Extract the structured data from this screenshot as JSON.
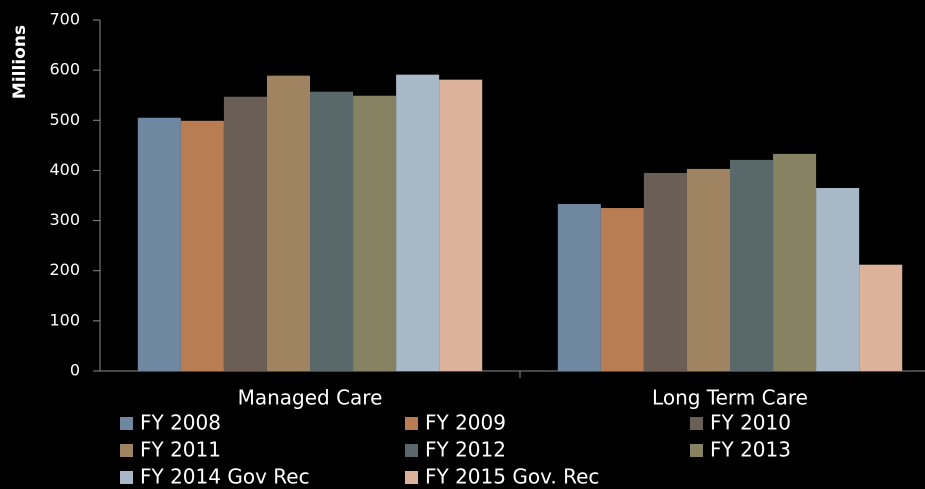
{
  "chart_data": {
    "type": "bar",
    "y_axis_label": "Millions",
    "categories": [
      "Managed Care",
      "Long Term Care"
    ],
    "series": [
      {
        "name": "FY 2008",
        "color": "#6f87a0",
        "values": [
          505,
          333
        ]
      },
      {
        "name": "FY 2009",
        "color": "#b87d52",
        "values": [
          499,
          325
        ]
      },
      {
        "name": "FY 2010",
        "color": "#6b5e55",
        "values": [
          547,
          395
        ]
      },
      {
        "name": "FY 2011",
        "color": "#a08461",
        "values": [
          589,
          403
        ]
      },
      {
        "name": "FY 2012",
        "color": "#58686b",
        "values": [
          557,
          421
        ]
      },
      {
        "name": "FY 2013",
        "color": "#878262",
        "values": [
          549,
          433
        ]
      },
      {
        "name": "FY 2014 Gov Rec",
        "color": "#a8b8c6",
        "values": [
          591,
          365
        ]
      },
      {
        "name": "FY 2015 Gov. Rec",
        "color": "#dcb39a",
        "values": [
          581,
          212
        ]
      }
    ],
    "ylim": [
      0,
      700
    ],
    "yticks": [
      0,
      100,
      200,
      300,
      400,
      500,
      600,
      700
    ],
    "legend": "bottom"
  }
}
